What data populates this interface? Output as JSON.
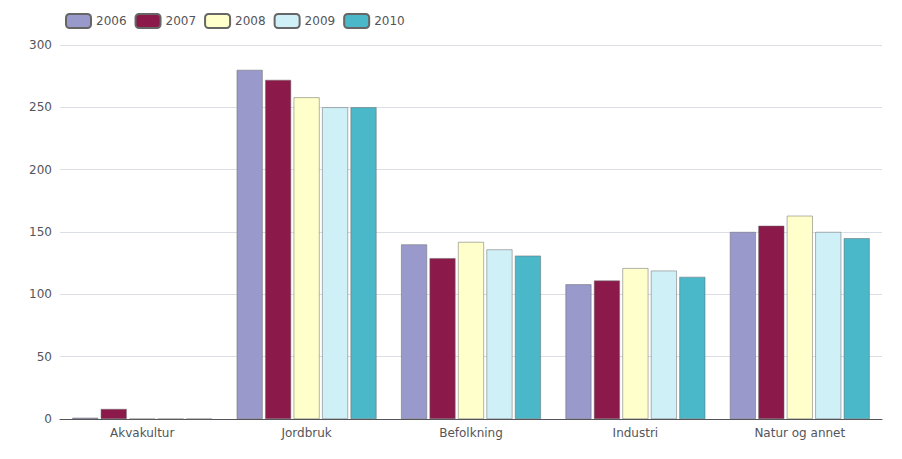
{
  "chart_data": {
    "type": "bar",
    "categories": [
      "Akvakultur",
      "Jordbruk",
      "Befolkning",
      "Industri",
      "Natur og annet"
    ],
    "series": [
      {
        "name": "2006",
        "color": "#9999cc",
        "values": [
          1,
          280,
          140,
          108,
          150
        ]
      },
      {
        "name": "2007",
        "color": "#8b1a4a",
        "values": [
          8,
          272,
          129,
          111,
          155
        ]
      },
      {
        "name": "2008",
        "color": "#ffffcc",
        "values": [
          0,
          258,
          142,
          121,
          163
        ]
      },
      {
        "name": "2009",
        "color": "#d0f0f8",
        "values": [
          0,
          250,
          136,
          119,
          150
        ]
      },
      {
        "name": "2010",
        "color": "#4ab8c8",
        "values": [
          0,
          250,
          131,
          114,
          145
        ]
      }
    ],
    "ylim": [
      0,
      300
    ],
    "yticks": [
      0,
      50,
      100,
      150,
      200,
      250,
      300
    ],
    "grid": true,
    "legend": "upper left"
  }
}
